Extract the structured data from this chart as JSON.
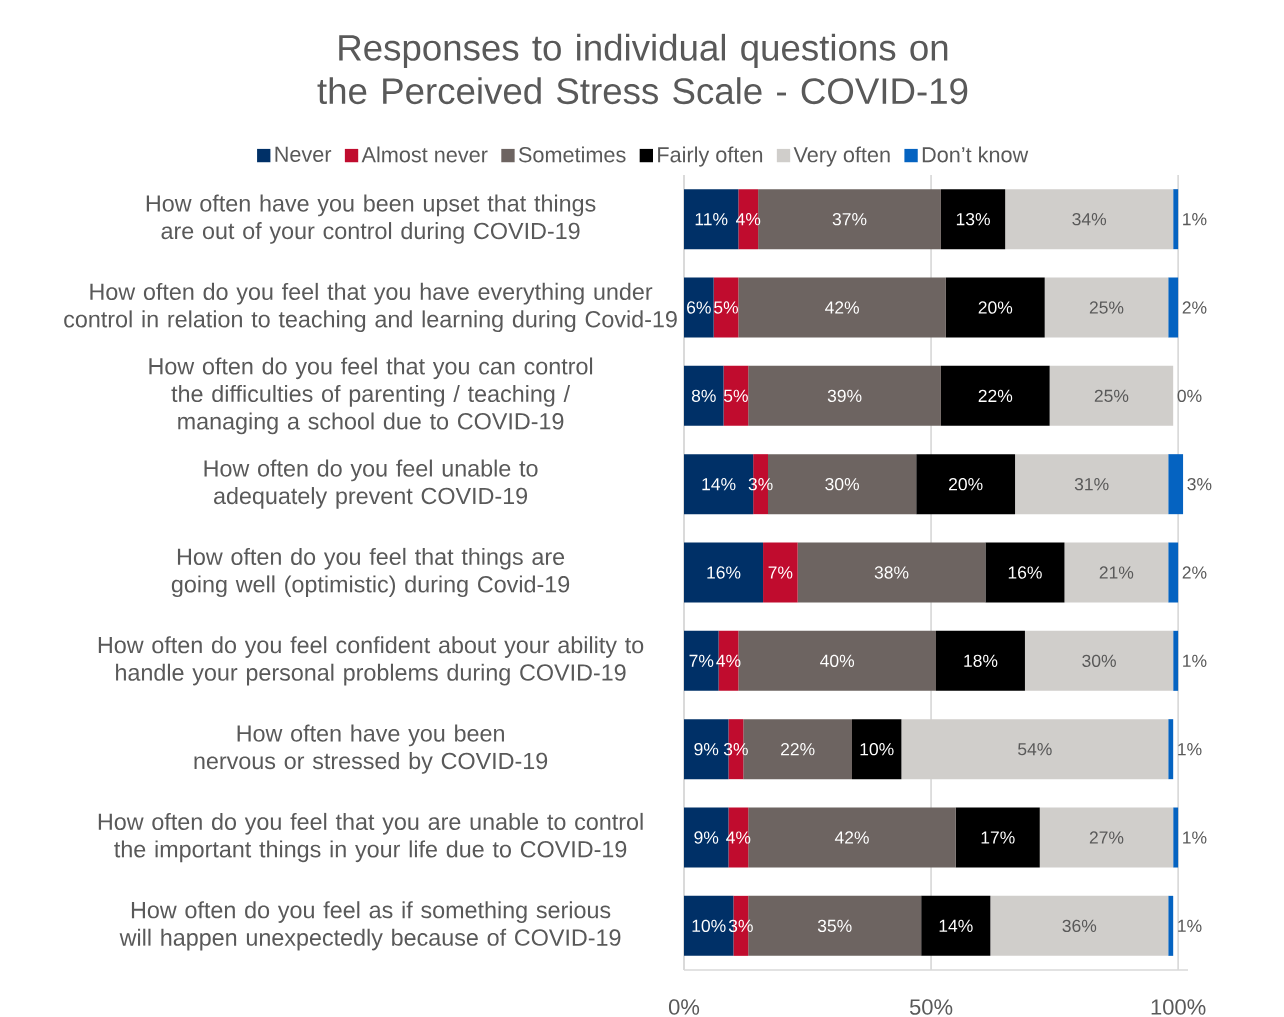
{
  "chart_data": {
    "type": "bar",
    "orientation": "horizontal",
    "stacked": true,
    "title": "Responses to individual questions on the Perceived Stress Scale - COVID-19",
    "categories": [
      "How often have you been upset that things are out of your control during COVID-19",
      "How often do you feel  that you have everything under control in relation to teaching and learning during Covid-19",
      "How often do you feel that you can control the difficulties of parenting / teaching / managing a school due to COVID-19",
      "How often do you feel unable to adequately prevent COVID-19",
      "How often do you feel that things are going well (optimistic) during Covid-19",
      "How often do you feel confident about your ability to handle your personal problems during COVID-19",
      "How often have you been nervous or stressed by COVID-19",
      "How often do you feel that you are unable to control the important things in your life due to COVID-19",
      "How often do you feel as if something serious will happen unexpectedly because of COVID-19"
    ],
    "series": [
      {
        "name": "Never",
        "color": "#003067",
        "values": [
          11,
          6,
          8,
          14,
          16,
          7,
          9,
          9,
          10
        ],
        "value_labels": [
          "11%",
          "6%",
          "8%",
          "14%",
          "16%",
          "7%",
          "9%",
          "9%",
          "10%"
        ]
      },
      {
        "name": "Almost never",
        "color": "#c00c2e",
        "values": [
          4,
          5,
          5,
          3,
          7,
          4,
          3,
          4,
          3
        ],
        "value_labels": [
          "4%",
          "5%",
          "5%",
          "3%",
          "7%",
          "4%",
          "3%",
          "4%",
          "3%"
        ]
      },
      {
        "name": "Sometimes",
        "color": "#6d6461",
        "values": [
          37,
          42,
          39,
          30,
          38,
          40,
          22,
          42,
          35
        ],
        "value_labels": [
          "37%",
          "42%",
          "39%",
          "30%",
          "38%",
          "40%",
          "22%",
          "42%",
          "35%"
        ]
      },
      {
        "name": "Fairly often",
        "color": "#000000",
        "values": [
          13,
          20,
          22,
          20,
          16,
          18,
          10,
          17,
          14
        ],
        "value_labels": [
          "13%",
          "20%",
          "22%",
          "20%",
          "16%",
          "18%",
          "10%",
          "17%",
          "14%"
        ]
      },
      {
        "name": "Very often",
        "color": "#d0cecb",
        "values": [
          34,
          25,
          25,
          31,
          21,
          30,
          54,
          27,
          36
        ],
        "value_labels": [
          "34%",
          "25%",
          "25%",
          "31%",
          "21%",
          "30%",
          "54%",
          "27%",
          "36%"
        ]
      },
      {
        "name": "Don’t know",
        "color": "#0563c1",
        "values": [
          1,
          2,
          0,
          3,
          2,
          1,
          1,
          1,
          1
        ],
        "value_labels": [
          "1%",
          "2%",
          "0%",
          "3%",
          "2%",
          "1%",
          "1%",
          "1%",
          "1%"
        ]
      }
    ],
    "xlim": [
      0,
      102
    ],
    "xticks": [
      {
        "value": 0,
        "label": "0%"
      },
      {
        "value": 50,
        "label": "50%"
      },
      {
        "value": 100,
        "label": "100%"
      }
    ],
    "grid": "x",
    "legend": "top"
  }
}
